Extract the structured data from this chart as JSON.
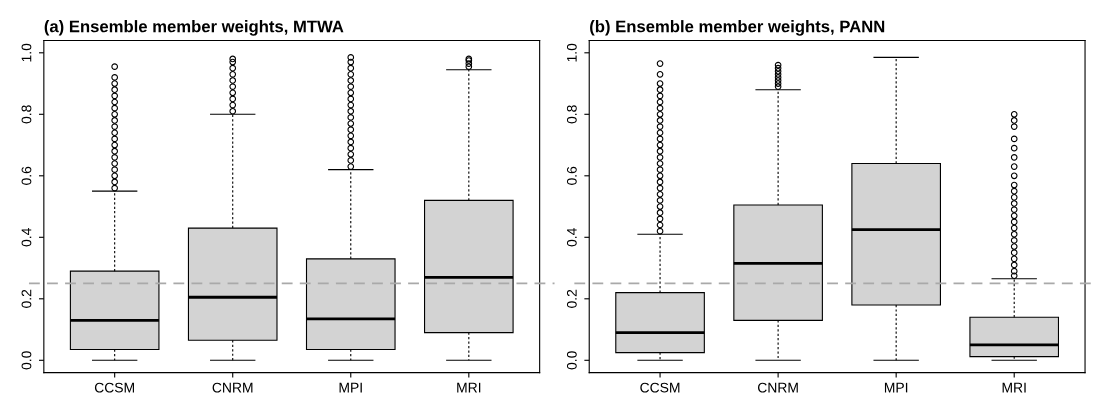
{
  "chart_data": [
    {
      "type": "box",
      "title": "(a) Ensemble member weights, MTWA",
      "categories": [
        "CCSM",
        "CNRM",
        "MPI",
        "MRI"
      ],
      "color": "#d3d3d3",
      "ylim": [
        -0.04,
        1.04
      ],
      "yticks": [
        {
          "value": 0,
          "label": "0.0"
        },
        {
          "value": 0.2,
          "label": "0.2"
        },
        {
          "value": 0.4,
          "label": "0.4"
        },
        {
          "value": 0.6,
          "label": "0.6"
        },
        {
          "value": 0.8,
          "label": "0.8"
        },
        {
          "value": 1,
          "label": "1.0"
        }
      ],
      "ref_lines": [
        {
          "axis": "y",
          "value": 0.25,
          "label": null,
          "color": "#a9a9a9",
          "line_style": "dashed"
        }
      ],
      "boxes": [
        {
          "low": 0,
          "q1": 0.035,
          "median": 0.13,
          "q3": 0.29,
          "high": 0.55,
          "outliers": [
            0.56,
            0.58,
            0.6,
            0.62,
            0.64,
            0.66,
            0.68,
            0.7,
            0.72,
            0.74,
            0.76,
            0.78,
            0.8,
            0.82,
            0.84,
            0.86,
            0.88,
            0.9,
            0.92,
            0.955
          ]
        },
        {
          "low": 0,
          "q1": 0.065,
          "median": 0.205,
          "q3": 0.43,
          "high": 0.8,
          "outliers": [
            0.81,
            0.83,
            0.85,
            0.87,
            0.89,
            0.91,
            0.93,
            0.95,
            0.97,
            0.98
          ]
        },
        {
          "low": 0,
          "q1": 0.035,
          "median": 0.135,
          "q3": 0.33,
          "high": 0.62,
          "outliers": [
            0.63,
            0.65,
            0.67,
            0.69,
            0.71,
            0.73,
            0.75,
            0.77,
            0.79,
            0.81,
            0.83,
            0.85,
            0.87,
            0.89,
            0.91,
            0.93,
            0.95,
            0.97,
            0.985
          ]
        },
        {
          "low": 0,
          "q1": 0.09,
          "median": 0.27,
          "q3": 0.52,
          "high": 0.945,
          "outliers": [
            0.955,
            0.965,
            0.975,
            0.98
          ]
        }
      ]
    },
    {
      "type": "box",
      "title": "(b) Ensemble member weights, PANN",
      "categories": [
        "CCSM",
        "CNRM",
        "MPI",
        "MRI"
      ],
      "color": "#d3d3d3",
      "ylim": [
        -0.04,
        1.04
      ],
      "yticks": [
        {
          "value": 0,
          "label": "0.0"
        },
        {
          "value": 0.2,
          "label": "0.2"
        },
        {
          "value": 0.4,
          "label": "0.4"
        },
        {
          "value": 0.6,
          "label": "0.6"
        },
        {
          "value": 0.8,
          "label": "0.8"
        },
        {
          "value": 1,
          "label": "1.0"
        }
      ],
      "ref_lines": [
        {
          "axis": "y",
          "value": 0.25,
          "label": null,
          "color": "#a9a9a9",
          "line_style": "dashed"
        }
      ],
      "boxes": [
        {
          "low": 0,
          "q1": 0.025,
          "median": 0.09,
          "q3": 0.22,
          "high": 0.41,
          "outliers": [
            0.42,
            0.44,
            0.46,
            0.48,
            0.5,
            0.52,
            0.54,
            0.56,
            0.58,
            0.6,
            0.62,
            0.64,
            0.66,
            0.68,
            0.7,
            0.72,
            0.74,
            0.76,
            0.78,
            0.8,
            0.82,
            0.84,
            0.86,
            0.88,
            0.9,
            0.93,
            0.965
          ]
        },
        {
          "low": 0,
          "q1": 0.13,
          "median": 0.315,
          "q3": 0.505,
          "high": 0.88,
          "outliers": [
            0.89,
            0.9,
            0.91,
            0.92,
            0.93,
            0.94,
            0.95,
            0.96
          ]
        },
        {
          "low": 0,
          "q1": 0.18,
          "median": 0.425,
          "q3": 0.64,
          "high": 0.985
        },
        {
          "low": 0,
          "q1": 0.012,
          "median": 0.05,
          "q3": 0.14,
          "high": 0.265,
          "outliers": [
            0.275,
            0.29,
            0.31,
            0.33,
            0.35,
            0.37,
            0.39,
            0.41,
            0.43,
            0.45,
            0.47,
            0.49,
            0.51,
            0.53,
            0.55,
            0.57,
            0.6,
            0.63,
            0.66,
            0.69,
            0.72,
            0.76,
            0.78,
            0.8
          ]
        }
      ]
    }
  ]
}
